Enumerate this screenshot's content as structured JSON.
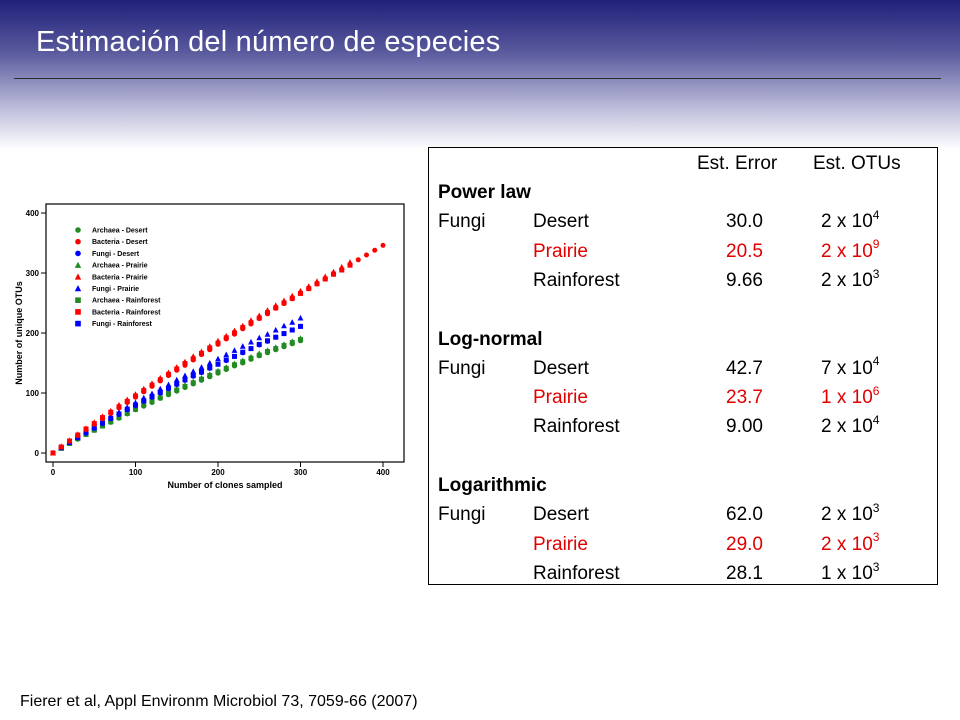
{
  "title": "Estimación del número de especies",
  "citation": "Fierer et al, Appl Environm Microbiol 73, 7059-66 (2007)",
  "chart_data": {
    "type": "scatter",
    "title": "",
    "xlabel": "Number of clones sampled",
    "ylabel": "Number of unique OTUs",
    "xlim": [
      0,
      400
    ],
    "ylim": [
      0,
      400
    ],
    "xticks": [
      0,
      100,
      200,
      300,
      400
    ],
    "yticks": [
      0,
      100,
      200,
      300,
      400
    ],
    "grid": false,
    "legend_position": "top-left",
    "series": [
      {
        "name": "Archaea - Desert",
        "color": "#228B22",
        "marker": "circle",
        "x": [
          0,
          10,
          20,
          30,
          40,
          50,
          60,
          70,
          80,
          90,
          100,
          110,
          120,
          130,
          140,
          150,
          160,
          170,
          180,
          190,
          200,
          210,
          220,
          230,
          240,
          250,
          260,
          270,
          280,
          290,
          300
        ],
        "y": [
          0,
          8,
          16,
          23,
          31,
          38,
          45,
          51,
          58,
          65,
          72,
          78,
          84,
          91,
          97,
          103,
          109,
          115,
          121,
          127,
          133,
          139,
          145,
          150,
          156,
          162,
          167,
          172,
          177,
          182,
          187
        ]
      },
      {
        "name": "Bacteria - Desert",
        "color": "#ff0000",
        "marker": "circle",
        "x": [
          0,
          10,
          20,
          30,
          40,
          50,
          60,
          70,
          80,
          90,
          100,
          110,
          120,
          130,
          140,
          150,
          160,
          170,
          180,
          190,
          200,
          210,
          220,
          230,
          240,
          250,
          260,
          270,
          280,
          290,
          300,
          310,
          320,
          330,
          340,
          350,
          360,
          370,
          380,
          390,
          400
        ],
        "y": [
          0,
          10,
          20,
          29,
          39,
          48,
          57,
          66,
          75,
          84,
          93,
          102,
          111,
          120,
          129,
          138,
          146,
          155,
          164,
          172,
          181,
          190,
          198,
          207,
          215,
          224,
          232,
          241,
          249,
          257,
          266,
          274,
          282,
          290,
          298,
          306,
          314,
          322,
          330,
          338,
          346
        ]
      },
      {
        "name": "Fungi - Desert",
        "color": "#0000ff",
        "marker": "circle",
        "x": [
          0,
          10,
          20,
          30,
          40,
          50,
          60,
          70,
          80,
          90,
          100,
          110,
          120,
          130,
          140,
          150,
          160,
          170,
          180,
          190,
          200,
          210,
          220,
          230,
          240,
          250,
          260,
          270,
          280,
          290,
          300
        ],
        "y": [
          0,
          9,
          17,
          25,
          33,
          41,
          49,
          57,
          64,
          72,
          79,
          86,
          93,
          100,
          107,
          114,
          121,
          128,
          134,
          141,
          148,
          154,
          161,
          167,
          174,
          180,
          186,
          193,
          199,
          205,
          211
        ]
      },
      {
        "name": "Archaea - Prairie",
        "color": "#228B22",
        "marker": "triangle",
        "x": [
          0,
          10,
          20,
          30,
          40,
          50,
          60,
          70,
          80,
          90,
          100,
          110,
          120,
          130,
          140,
          150,
          160,
          170,
          180,
          190,
          200,
          210,
          220,
          230,
          240,
          250,
          260,
          270,
          280,
          290,
          300
        ],
        "y": [
          0,
          8,
          17,
          25,
          32,
          40,
          47,
          54,
          61,
          68,
          75,
          82,
          88,
          95,
          101,
          107,
          113,
          119,
          125,
          131,
          137,
          143,
          149,
          154,
          160,
          166,
          171,
          176,
          181,
          186,
          191
        ]
      },
      {
        "name": "Bacteria - Prairie",
        "color": "#ff0000",
        "marker": "triangle",
        "x": [
          0,
          10,
          20,
          30,
          40,
          50,
          60,
          70,
          80,
          90,
          100,
          110,
          120,
          130,
          140,
          150,
          160,
          170,
          180,
          190,
          200,
          210,
          220,
          230,
          240,
          250,
          260,
          270,
          280,
          290,
          300,
          310,
          320,
          330,
          340,
          350,
          360
        ],
        "y": [
          0,
          11,
          21,
          31,
          41,
          51,
          61,
          70,
          80,
          89,
          98,
          107,
          116,
          125,
          134,
          143,
          152,
          161,
          169,
          178,
          187,
          195,
          204,
          212,
          221,
          229,
          238,
          246,
          254,
          262,
          270,
          278,
          286,
          294,
          302,
          310,
          318
        ]
      },
      {
        "name": "Fungi - Prairie",
        "color": "#0000ff",
        "marker": "triangle",
        "x": [
          0,
          10,
          20,
          30,
          40,
          50,
          60,
          70,
          80,
          90,
          100,
          110,
          120,
          130,
          140,
          150,
          160,
          170,
          180,
          190,
          200,
          210,
          220,
          230,
          240,
          250,
          260,
          270,
          280,
          290,
          300
        ],
        "y": [
          0,
          9,
          18,
          27,
          36,
          44,
          52,
          60,
          68,
          76,
          84,
          92,
          99,
          107,
          114,
          122,
          129,
          136,
          143,
          150,
          157,
          164,
          171,
          178,
          185,
          192,
          198,
          205,
          212,
          218,
          225
        ]
      },
      {
        "name": "Archaea - Rainforest",
        "color": "#228B22",
        "marker": "square",
        "x": [
          0,
          10,
          20,
          30,
          40,
          50,
          60,
          70,
          80,
          90,
          100,
          110,
          120,
          130,
          140,
          150,
          160,
          170,
          180,
          190,
          200,
          210,
          220,
          230,
          240,
          250,
          260,
          270,
          280,
          290,
          300
        ],
        "y": [
          0,
          8,
          16,
          24,
          31,
          38,
          45,
          52,
          59,
          66,
          73,
          80,
          86,
          92,
          99,
          105,
          111,
          117,
          123,
          129,
          135,
          141,
          147,
          152,
          158,
          163,
          169,
          174,
          179,
          184,
          189
        ]
      },
      {
        "name": "Bacteria - Rainforest",
        "color": "#ff0000",
        "marker": "square",
        "x": [
          0,
          10,
          20,
          30,
          40,
          50,
          60,
          70,
          80,
          90,
          100,
          110,
          120,
          130,
          140,
          150,
          160,
          170,
          180,
          190,
          200,
          210,
          220,
          230,
          240,
          250,
          260,
          270,
          280,
          290,
          300,
          310,
          320,
          330,
          340,
          350,
          360
        ],
        "y": [
          0,
          10,
          20,
          30,
          40,
          49,
          59,
          68,
          77,
          86,
          95,
          104,
          113,
          122,
          131,
          140,
          149,
          157,
          166,
          175,
          183,
          192,
          200,
          209,
          217,
          225,
          234,
          242,
          250,
          258,
          266,
          274,
          282,
          290,
          298,
          305,
          313
        ]
      },
      {
        "name": "Fungi - Rainforest",
        "color": "#0000ff",
        "marker": "square",
        "x": [
          0,
          10,
          20,
          30,
          40,
          50,
          60,
          70,
          80,
          90,
          100,
          110,
          120,
          130,
          140,
          150,
          160,
          170,
          180,
          190,
          200,
          210,
          220,
          230,
          240,
          250,
          260,
          270,
          280,
          290,
          300
        ],
        "y": [
          0,
          9,
          18,
          26,
          34,
          42,
          50,
          58,
          65,
          73,
          80,
          87,
          94,
          101,
          108,
          115,
          122,
          129,
          135,
          142,
          148,
          155,
          161,
          168,
          174,
          181,
          187,
          193,
          199,
          205,
          211
        ]
      }
    ]
  },
  "estimates_table": {
    "headers": {
      "error": "Est. Error",
      "otus": "Est. OTUs"
    },
    "groups": [
      {
        "method": "Power law",
        "taxon": "Fungi",
        "rows": [
          {
            "site": "Desert",
            "error": "30.0",
            "otus_base": "2 x 10",
            "otus_exp": "4",
            "highlight": false
          },
          {
            "site": "Prairie",
            "error": "20.5",
            "otus_base": "2 x 10",
            "otus_exp": "9",
            "highlight": true
          },
          {
            "site": "Rainforest",
            "error": "9.66",
            "otus_base": "2 x 10",
            "otus_exp": "3",
            "highlight": false
          }
        ]
      },
      {
        "method": "Log-normal",
        "taxon": "Fungi",
        "rows": [
          {
            "site": "Desert",
            "error": "42.7",
            "otus_base": "7 x 10",
            "otus_exp": "4",
            "highlight": false
          },
          {
            "site": "Prairie",
            "error": "23.7",
            "otus_base": "1 x 10",
            "otus_exp": "6",
            "highlight": true
          },
          {
            "site": "Rainforest",
            "error": "9.00",
            "otus_base": "2 x 10",
            "otus_exp": "4",
            "highlight": false
          }
        ]
      },
      {
        "method": "Logarithmic",
        "taxon": "Fungi",
        "rows": [
          {
            "site": "Desert",
            "error": "62.0",
            "otus_base": "2 x 10",
            "otus_exp": "3",
            "highlight": false
          },
          {
            "site": "Prairie",
            "error": "29.0",
            "otus_base": "2 x 10",
            "otus_exp": "3",
            "highlight": true
          },
          {
            "site": "Rainforest",
            "error": "28.1",
            "otus_base": "1 x 10",
            "otus_exp": "3",
            "highlight": false
          }
        ]
      }
    ]
  }
}
